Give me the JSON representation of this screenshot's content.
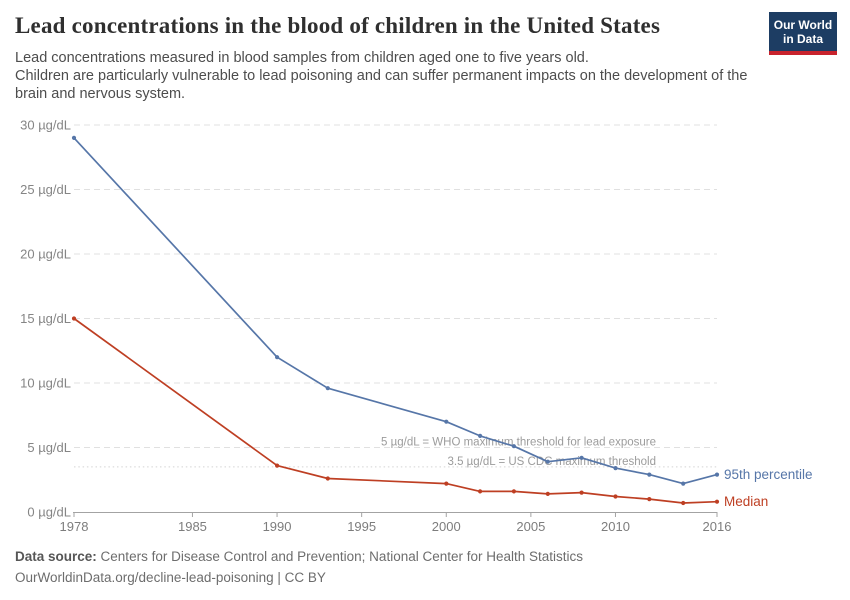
{
  "header": {
    "title": "Lead concentrations in the blood of children in the United States",
    "subtitle_lines": [
      "Lead concentrations measured in blood samples from children aged one to five years old.",
      "Children are particularly vulnerable to lead poisoning and can suffer permanent impacts on the development of the brain and nervous system."
    ],
    "logo": {
      "line1": "Our World",
      "line2": "in Data"
    }
  },
  "chart_data": {
    "type": "line",
    "title": "Lead concentrations in the blood of children in the United States",
    "unit": "µg/dL",
    "x": [
      1978,
      1990,
      1993,
      2000,
      2002,
      2004,
      2006,
      2008,
      2010,
      2012,
      2014,
      2016
    ],
    "series": [
      {
        "name": "95th percentile",
        "color": "#5676a8",
        "values": [
          29,
          12,
          9.6,
          7.0,
          5.9,
          5.1,
          3.9,
          4.2,
          3.4,
          2.9,
          2.2,
          2.9
        ]
      },
      {
        "name": "Median",
        "color": "#be3f23",
        "values": [
          15,
          3.6,
          2.6,
          2.2,
          1.6,
          1.6,
          1.4,
          1.5,
          1.2,
          1.0,
          0.7,
          0.8
        ]
      }
    ],
    "xlim": [
      1978,
      2016
    ],
    "ylim": [
      0,
      30
    ],
    "xticks": [
      1978,
      1985,
      1990,
      1995,
      2000,
      2005,
      2010,
      2016
    ],
    "yticks": [
      0,
      5,
      10,
      15,
      20,
      25,
      30
    ],
    "ytick_suffix": " µg/dL",
    "grid": true,
    "legend_position": "line-end-labels",
    "annotations": [
      {
        "value": 5,
        "text": "5 µg/dL = WHO maximum threshold for lead exposure",
        "line_style": "dashed"
      },
      {
        "value": 3.5,
        "text": "3.5 µg/dL = US CDC maximum threshold",
        "line_style": "dotted"
      }
    ]
  },
  "footer": {
    "source_label": "Data source:",
    "source_text": "Centers for Disease Control and Prevention; National Center for Health Statistics",
    "license_line": "OurWorldinData.org/decline-lead-poisoning | CC BY"
  },
  "colors": {
    "series_blue": "#5676a8",
    "series_red": "#be3f23",
    "grid": "#e0e0e0",
    "threshold_dotted": "#d4d4d4",
    "axis": "#a3a3a3",
    "tick_label": "#858585",
    "annotation_text": "#9c9c9c",
    "logo_bg": "#1d3d63",
    "logo_bar": "#c8232d"
  }
}
